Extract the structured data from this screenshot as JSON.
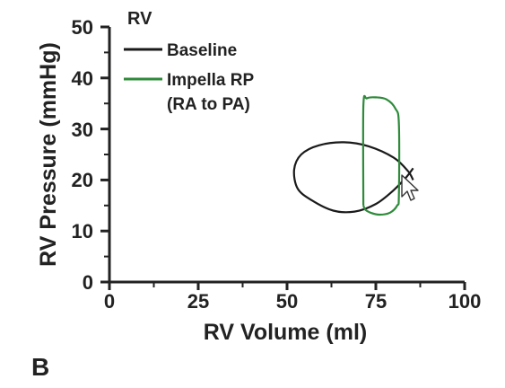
{
  "panel_letter": "B",
  "chart_data": {
    "type": "line",
    "title": "RV",
    "xlabel": "RV Volume (ml)",
    "ylabel": "RV Pressure (mmHg)",
    "xlim": [
      0,
      100
    ],
    "ylim": [
      0,
      50
    ],
    "xticks": [
      "0",
      "25",
      "50",
      "75",
      "100"
    ],
    "yticks": [
      "0",
      "10",
      "20",
      "30",
      "40",
      "50"
    ],
    "legend_position": "top-left",
    "series": [
      {
        "name": "Baseline",
        "color": "#1a1a1a",
        "x": [
          85.5,
          83.5,
          80,
          75,
          69,
          63,
          57,
          53,
          52,
          54,
          59,
          66,
          73,
          80,
          84,
          85.5
        ],
        "y": [
          22.3,
          20.5,
          18,
          15.3,
          13.8,
          14,
          16,
          18.3,
          22,
          25,
          26.8,
          27.4,
          26.6,
          24.4,
          21.8,
          20
        ]
      },
      {
        "name": "Impella RP (RA to PA)",
        "legend_lines": [
          "Impella RP",
          "(RA to PA)"
        ],
        "color": "#2e8b3a",
        "x": [
          71.5,
          71.5,
          72.5,
          75,
          78,
          80.5,
          81.5,
          81.5,
          81,
          79,
          76,
          73.5,
          72,
          71.5
        ],
        "y": [
          15,
          34.5,
          36,
          36.2,
          35.8,
          34,
          31,
          17,
          15,
          13.6,
          13.2,
          13.6,
          14.2,
          15
        ]
      }
    ]
  },
  "cursor": {
    "icon": "mouse-pointer-icon"
  }
}
